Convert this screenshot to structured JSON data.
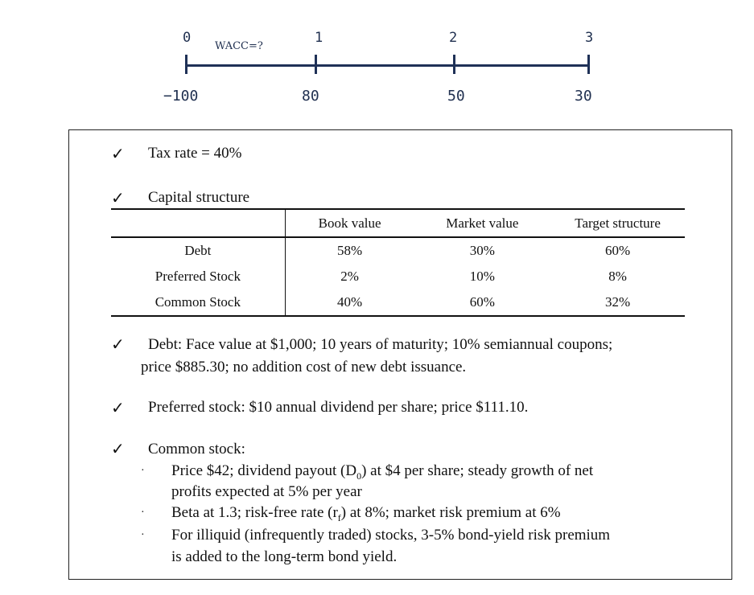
{
  "timeline": {
    "periods": [
      "0",
      "1",
      "2",
      "3"
    ],
    "cash_flows": [
      "−100",
      "80",
      "50",
      "30"
    ],
    "wacc_label": "WACC=?"
  },
  "assumptions": {
    "check_symbol": "✓",
    "tax_rate": "Tax rate = 40%",
    "capital_structure_title": "Capital structure",
    "table": {
      "headers": [
        "",
        "Book value",
        "Market value",
        "Target structure"
      ],
      "rows": [
        {
          "label": "Debt",
          "book": "58%",
          "market": "30%",
          "target": "60%"
        },
        {
          "label": "Preferred Stock",
          "book": "2%",
          "market": "10%",
          "target": "8%"
        },
        {
          "label": "Common Stock",
          "book": "40%",
          "market": "60%",
          "target": "32%"
        }
      ]
    },
    "debt_line1": "Debt: Face value at $1,000; 10 years of maturity; 10% semiannual coupons;",
    "debt_line2": "price $885.30; no addition cost of new debt issuance.",
    "preferred": "Preferred stock: $10 annual dividend per share; price $111.10.",
    "common_title": "Common stock:",
    "bullet_symbol": "·",
    "common_b1_a": "Price $42; dividend payout (D",
    "common_b1_sub": "0",
    "common_b1_b": ") at $4 per share; steady growth of net",
    "common_b1_line2": "profits expected at 5% per year",
    "common_b2_a": "Beta at 1.3; risk-free rate (r",
    "common_b2_sub": "f",
    "common_b2_b": ") at 8%; market risk premium at 6%",
    "common_b3_line1": "For illiquid (infrequently traded) stocks, 3-5% bond-yield risk premium",
    "common_b3_line2": "is added to the long-term bond yield."
  }
}
